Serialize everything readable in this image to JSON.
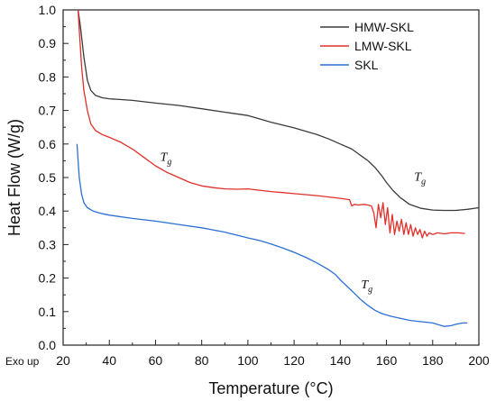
{
  "chart_data": {
    "type": "line",
    "xlabel": "Temperature (°C)",
    "ylabel": "Heat Flow (W/g)",
    "corner_label": "Exo up",
    "xlim": [
      20,
      200
    ],
    "ylim": [
      0.0,
      1.0
    ],
    "x_ticks": [
      "20",
      "40",
      "60",
      "80",
      "100",
      "120",
      "140",
      "160",
      "180",
      "200"
    ],
    "y_ticks": [
      "0.0",
      "0.1",
      "0.2",
      "0.3",
      "0.4",
      "0.5",
      "0.6",
      "0.7",
      "0.8",
      "0.9",
      "1.0"
    ],
    "grid": false,
    "legend_position": "top-right",
    "series": [
      {
        "name": "HMW-SKL",
        "color": "#3a3a3a",
        "points": [
          [
            26.5,
            1.0
          ],
          [
            27.5,
            0.95
          ],
          [
            29,
            0.86
          ],
          [
            30.5,
            0.79
          ],
          [
            32,
            0.76
          ],
          [
            34,
            0.745
          ],
          [
            37,
            0.738
          ],
          [
            40,
            0.735
          ],
          [
            50,
            0.73
          ],
          [
            60,
            0.722
          ],
          [
            70,
            0.715
          ],
          [
            80,
            0.705
          ],
          [
            90,
            0.695
          ],
          [
            100,
            0.685
          ],
          [
            105,
            0.675
          ],
          [
            110,
            0.665
          ],
          [
            120,
            0.648
          ],
          [
            130,
            0.628
          ],
          [
            135,
            0.615
          ],
          [
            140,
            0.6
          ],
          [
            145,
            0.585
          ],
          [
            148,
            0.57
          ],
          [
            150,
            0.56
          ],
          [
            152,
            0.55
          ],
          [
            155,
            0.53
          ],
          [
            158,
            0.505
          ],
          [
            160,
            0.485
          ],
          [
            163,
            0.46
          ],
          [
            166,
            0.44
          ],
          [
            170,
            0.42
          ],
          [
            175,
            0.408
          ],
          [
            180,
            0.403
          ],
          [
            185,
            0.402
          ],
          [
            190,
            0.402
          ],
          [
            195,
            0.405
          ],
          [
            200,
            0.41
          ]
        ]
      },
      {
        "name": "LMW-SKL",
        "color": "#e0302a",
        "points": [
          [
            26.5,
            1.0
          ],
          [
            27,
            0.94
          ],
          [
            28,
            0.83
          ],
          [
            29,
            0.76
          ],
          [
            30.5,
            0.7
          ],
          [
            32,
            0.66
          ],
          [
            34,
            0.64
          ],
          [
            37,
            0.628
          ],
          [
            40,
            0.62
          ],
          [
            45,
            0.605
          ],
          [
            50,
            0.585
          ],
          [
            55,
            0.56
          ],
          [
            60,
            0.535
          ],
          [
            65,
            0.515
          ],
          [
            70,
            0.5
          ],
          [
            75,
            0.485
          ],
          [
            80,
            0.475
          ],
          [
            85,
            0.47
          ],
          [
            90,
            0.466
          ],
          [
            95,
            0.465
          ],
          [
            100,
            0.466
          ],
          [
            105,
            0.462
          ],
          [
            110,
            0.458
          ],
          [
            115,
            0.455
          ],
          [
            120,
            0.452
          ],
          [
            125,
            0.449
          ],
          [
            130,
            0.446
          ],
          [
            135,
            0.442
          ],
          [
            140,
            0.438
          ],
          [
            144,
            0.434
          ],
          [
            145,
            0.415
          ],
          [
            146,
            0.42
          ],
          [
            148,
            0.418
          ],
          [
            150,
            0.42
          ],
          [
            152,
            0.418
          ],
          [
            153.5,
            0.415
          ],
          [
            154.5,
            0.395
          ],
          [
            155.5,
            0.35
          ],
          [
            156.5,
            0.42
          ],
          [
            157.5,
            0.38
          ],
          [
            158.5,
            0.425
          ],
          [
            159.5,
            0.36
          ],
          [
            160.5,
            0.41
          ],
          [
            161.5,
            0.335
          ],
          [
            162.5,
            0.39
          ],
          [
            163.5,
            0.33
          ],
          [
            164.5,
            0.37
          ],
          [
            165.5,
            0.34
          ],
          [
            166.5,
            0.375
          ],
          [
            167.5,
            0.33
          ],
          [
            168.5,
            0.365
          ],
          [
            169.5,
            0.33
          ],
          [
            170.5,
            0.36
          ],
          [
            171.5,
            0.325
          ],
          [
            172.5,
            0.35
          ],
          [
            173.5,
            0.33
          ],
          [
            174.5,
            0.345
          ],
          [
            175.5,
            0.32
          ],
          [
            176.5,
            0.34
          ],
          [
            177.5,
            0.325
          ],
          [
            178.5,
            0.335
          ],
          [
            180,
            0.33
          ],
          [
            182,
            0.335
          ],
          [
            185,
            0.332
          ],
          [
            188,
            0.335
          ],
          [
            191,
            0.335
          ],
          [
            194,
            0.333
          ]
        ]
      },
      {
        "name": "SKL",
        "color": "#2c6fd6",
        "points": [
          [
            26,
            0.6
          ],
          [
            26.5,
            0.55
          ],
          [
            27,
            0.5
          ],
          [
            28,
            0.45
          ],
          [
            29,
            0.425
          ],
          [
            30.5,
            0.41
          ],
          [
            33,
            0.4
          ],
          [
            37,
            0.392
          ],
          [
            40,
            0.388
          ],
          [
            50,
            0.378
          ],
          [
            60,
            0.37
          ],
          [
            70,
            0.36
          ],
          [
            80,
            0.35
          ],
          [
            90,
            0.337
          ],
          [
            100,
            0.32
          ],
          [
            105,
            0.312
          ],
          [
            110,
            0.302
          ],
          [
            115,
            0.29
          ],
          [
            120,
            0.277
          ],
          [
            125,
            0.262
          ],
          [
            130,
            0.245
          ],
          [
            135,
            0.225
          ],
          [
            138,
            0.21
          ],
          [
            140,
            0.195
          ],
          [
            143,
            0.175
          ],
          [
            146,
            0.155
          ],
          [
            149,
            0.135
          ],
          [
            152,
            0.118
          ],
          [
            155,
            0.104
          ],
          [
            158,
            0.094
          ],
          [
            162,
            0.086
          ],
          [
            166,
            0.08
          ],
          [
            170,
            0.074
          ],
          [
            175,
            0.07
          ],
          [
            180,
            0.066
          ],
          [
            183,
            0.06
          ],
          [
            185,
            0.056
          ],
          [
            188,
            0.058
          ],
          [
            190,
            0.062
          ],
          [
            193,
            0.066
          ],
          [
            195,
            0.066
          ]
        ]
      }
    ],
    "annotations": [
      {
        "text": "Tg",
        "x": 62,
        "y": 0.55
      },
      {
        "text": "Tg",
        "x": 172,
        "y": 0.49
      },
      {
        "text": "Tg",
        "x": 149,
        "y": 0.17
      }
    ]
  }
}
